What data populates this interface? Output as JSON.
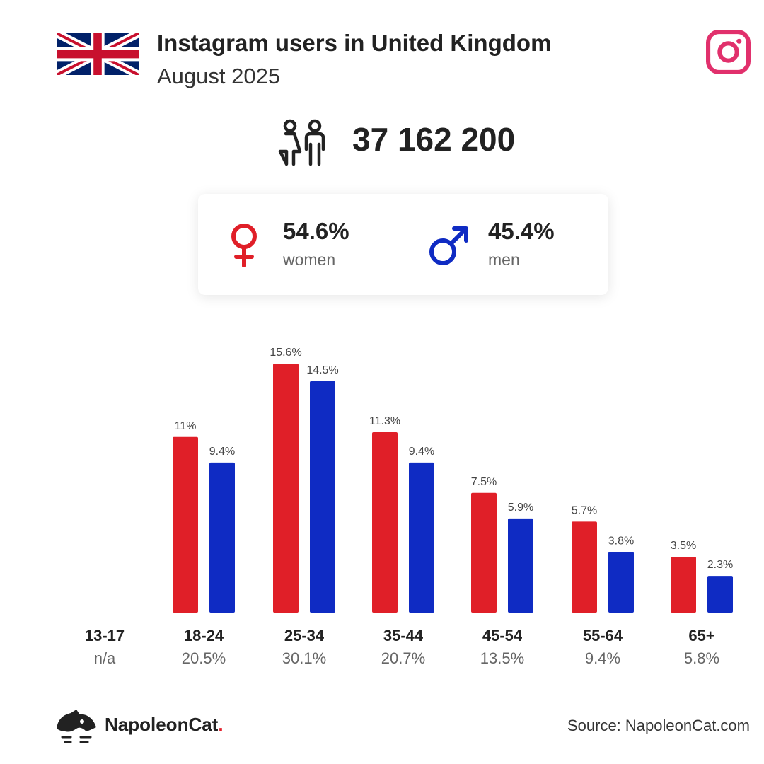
{
  "header": {
    "title": "Instagram users in United Kingdom",
    "subtitle": "August 2025"
  },
  "summary": {
    "total_users": "37 162 200",
    "women_pct": "54.6%",
    "women_label": "women",
    "men_pct": "45.4%",
    "men_label": "men"
  },
  "footer": {
    "brand": "NapoleonCat",
    "brand_suffix": ".",
    "source": "Source: NapoleonCat.com"
  },
  "colors": {
    "women": "#e01f28",
    "men": "#0f2bc3",
    "instagram": "#e1306c",
    "flag_blue": "#012169",
    "flag_red": "#c8102e"
  },
  "icons": {
    "flag": "united-kingdom-flag-icon",
    "instagram": "instagram-icon",
    "users": "users-icon",
    "female": "female-symbol-icon",
    "male": "male-symbol-icon",
    "logo": "napoleoncat-logo-icon"
  },
  "chart_data": {
    "type": "bar",
    "categories": [
      "13-17",
      "18-24",
      "25-34",
      "35-44",
      "45-54",
      "55-64",
      "65+"
    ],
    "category_totals": [
      "n/a",
      "20.5%",
      "30.1%",
      "20.7%",
      "13.5%",
      "9.4%",
      "5.8%"
    ],
    "series": [
      {
        "key": "women",
        "values": [
          null,
          11,
          15.6,
          11.3,
          7.5,
          5.7,
          3.5
        ],
        "labels": [
          "",
          "11%",
          "15.6%",
          "11.3%",
          "7.5%",
          "5.7%",
          "3.5%"
        ]
      },
      {
        "key": "men",
        "values": [
          null,
          9.4,
          14.5,
          9.4,
          5.9,
          3.8,
          2.3
        ],
        "labels": [
          "",
          "9.4%",
          "14.5%",
          "9.4%",
          "5.9%",
          "3.8%",
          "2.3%"
        ]
      }
    ],
    "ylim": [
      0,
      15.6
    ],
    "grid": false,
    "legend": "none"
  }
}
